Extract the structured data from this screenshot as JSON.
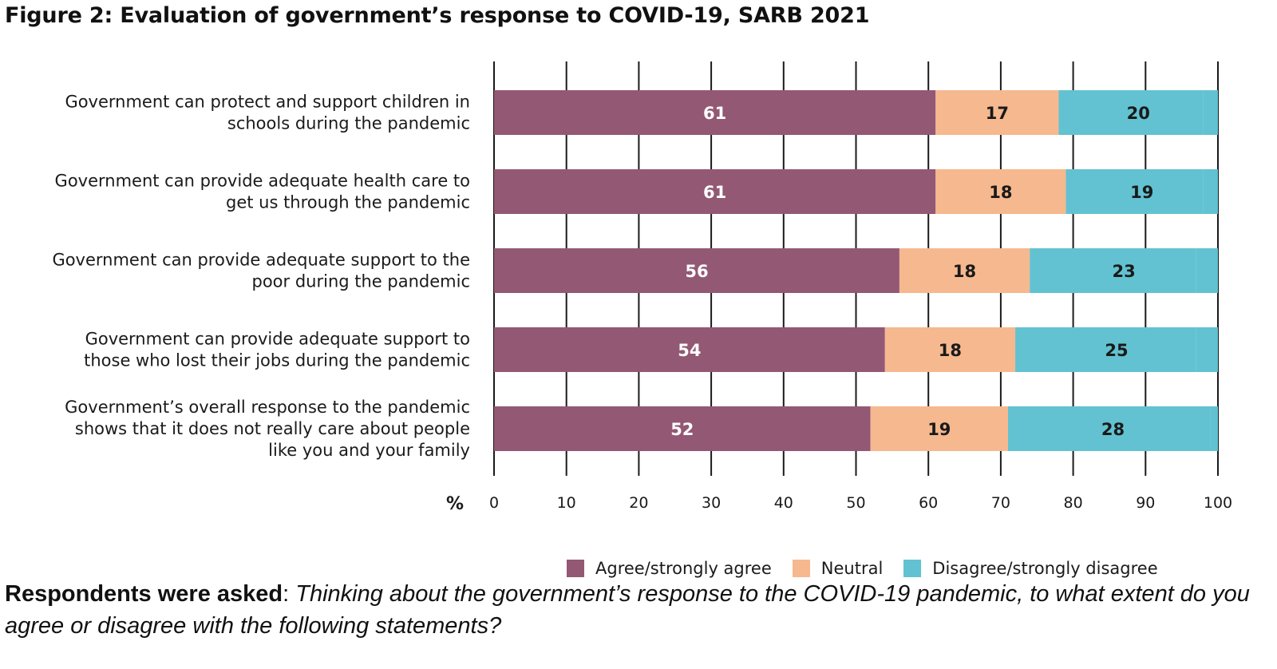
{
  "figure_title": "Figure 2: Evaluation of government’s response to COVID-19, SARB 2021",
  "question": {
    "lead": "Respondents were asked",
    "separator": ": ",
    "text": "Thinking about the government’s response to the COVID-19 pandemic, to what extent do you agree or disagree with the following statements?"
  },
  "chart_data": {
    "type": "bar",
    "orientation": "horizontal",
    "stacked": true,
    "title": "",
    "xlabel": "%",
    "ylabel": "",
    "xlim": [
      0,
      100
    ],
    "xticks": [
      0,
      10,
      20,
      30,
      40,
      50,
      60,
      70,
      80,
      90,
      100
    ],
    "grid": true,
    "legend_position": "bottom",
    "categories": [
      [
        "Government can protect and support children in",
        "schools during the pandemic"
      ],
      [
        "Government can provide adequate health care to",
        "get us through the pandemic"
      ],
      [
        "Government can provide adequate support to the",
        "poor during the pandemic"
      ],
      [
        "Government can provide adequate support to",
        "those who lost their jobs during the pandemic"
      ],
      [
        "Government’s overall response to the pandemic",
        "shows that it does not really care about people",
        "like you and your family"
      ]
    ],
    "series": [
      {
        "name": "Agree/strongly agree",
        "color": "#935874",
        "label_color": "#ffffff",
        "values": [
          61,
          61,
          56,
          54,
          52
        ]
      },
      {
        "name": "Neutral",
        "color": "#f6b88e",
        "label_color": "#1a1a1a",
        "values": [
          17,
          18,
          18,
          18,
          19
        ]
      },
      {
        "name": "Disagree/strongly disagree",
        "color": "#62c2d1",
        "label_color": "#1a1a1a",
        "values": [
          20,
          19,
          23,
          25,
          28
        ]
      }
    ]
  }
}
